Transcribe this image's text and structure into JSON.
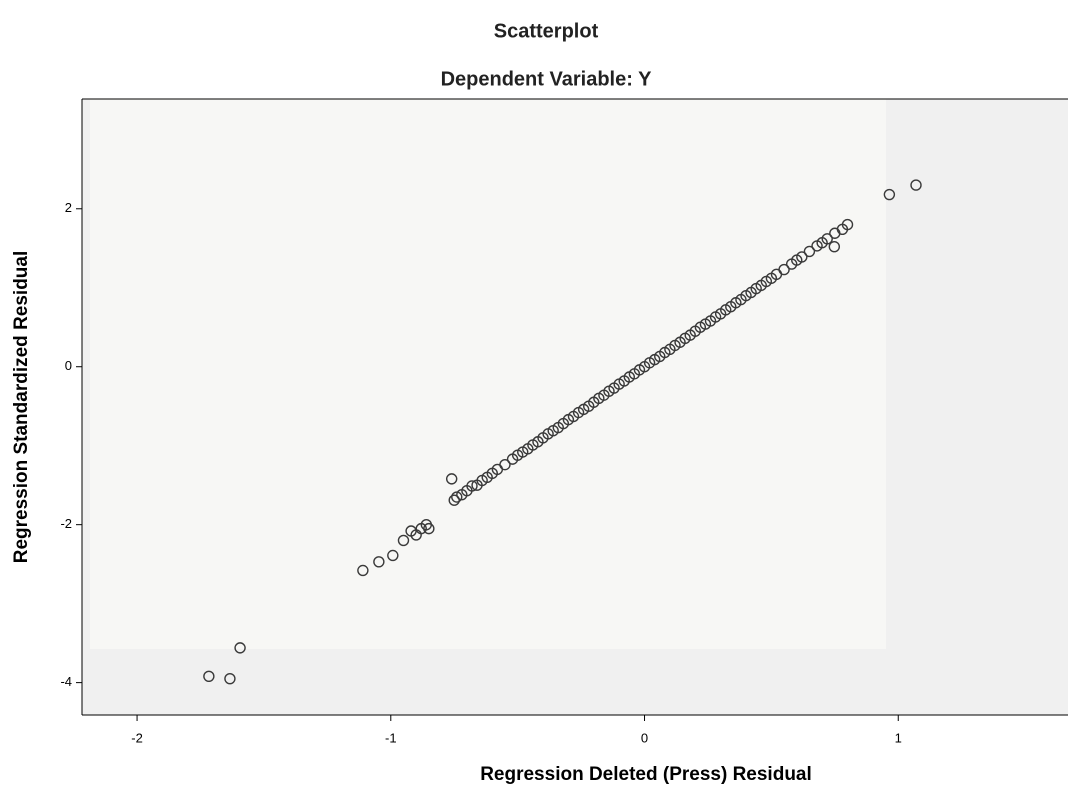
{
  "chart_data": {
    "type": "scatter",
    "title": "Scatterplot",
    "subtitle": "Dependent Variable: Y",
    "x_label": "Regression Deleted (Press) Residual",
    "y_label": "Regression Standardized Residual",
    "xlim": [
      -2.217,
      1.669
    ],
    "ylim": [
      -4.41,
      3.39
    ],
    "xticks": [
      -2,
      -1,
      0,
      1
    ],
    "yticks": [
      -4,
      -2,
      0,
      2
    ],
    "color": "#3a3a3a",
    "x": [
      1.07,
      0.965,
      -1.717,
      -1.634,
      -1.594,
      -1.11,
      -1.047,
      -0.992,
      -0.95,
      -0.92,
      -0.9,
      -0.88,
      -0.86,
      -0.85,
      -0.76,
      0.748,
      -0.75,
      -0.74,
      -0.72,
      -0.7,
      -0.68,
      -0.66,
      -0.64,
      -0.62,
      -0.6,
      -0.58,
      -0.55,
      -0.52,
      -0.5,
      -0.48,
      -0.46,
      -0.44,
      -0.42,
      -0.4,
      -0.38,
      -0.36,
      -0.34,
      -0.32,
      -0.3,
      -0.28,
      -0.26,
      -0.24,
      -0.22,
      -0.2,
      -0.18,
      -0.16,
      -0.14,
      -0.12,
      -0.1,
      -0.08,
      -0.06,
      -0.04,
      -0.02,
      0,
      0.02,
      0.04,
      0.06,
      0.08,
      0.1,
      0.12,
      0.14,
      0.16,
      0.18,
      0.2,
      0.22,
      0.24,
      0.26,
      0.28,
      0.3,
      0.32,
      0.34,
      0.36,
      0.38,
      0.4,
      0.42,
      0.44,
      0.46,
      0.48,
      0.5,
      0.52,
      0.55,
      0.58,
      0.6,
      0.62,
      0.65,
      0.68,
      0.7,
      0.72,
      0.75,
      0.78,
      0.8
    ],
    "values": [
      2.3,
      2.18,
      -3.92,
      -3.95,
      -3.56,
      -2.58,
      -2.47,
      -2.39,
      -2.2,
      -2.08,
      -2.13,
      -2.05,
      -2.0,
      -2.05,
      -1.42,
      1.52,
      -1.69,
      -1.65,
      -1.62,
      -1.57,
      -1.51,
      -1.5,
      -1.44,
      -1.4,
      -1.35,
      -1.3,
      -1.24,
      -1.17,
      -1.12,
      -1.08,
      -1.04,
      -0.99,
      -0.95,
      -0.9,
      -0.85,
      -0.81,
      -0.77,
      -0.72,
      -0.67,
      -0.63,
      -0.58,
      -0.54,
      -0.5,
      -0.45,
      -0.4,
      -0.36,
      -0.31,
      -0.27,
      -0.22,
      -0.18,
      -0.13,
      -0.09,
      -0.04,
      0,
      0.05,
      0.09,
      0.13,
      0.18,
      0.22,
      0.27,
      0.31,
      0.36,
      0.4,
      0.45,
      0.5,
      0.54,
      0.58,
      0.63,
      0.67,
      0.72,
      0.76,
      0.81,
      0.85,
      0.9,
      0.94,
      0.99,
      1.03,
      1.08,
      1.12,
      1.17,
      1.23,
      1.3,
      1.35,
      1.39,
      1.46,
      1.53,
      1.57,
      1.62,
      1.69,
      1.74,
      1.8
    ]
  }
}
